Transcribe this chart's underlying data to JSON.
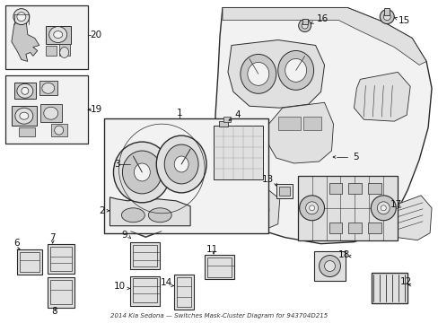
{
  "bg": "#ffffff",
  "lc": "#2a2a2a",
  "fc_light": "#f2f2f2",
  "fc_mid": "#e0e0e0",
  "fc_dark": "#c8c8c8",
  "title": "2014 Kia Sedona — Switches Mask-Cluster Diagram for 943704D215",
  "fig_w": 4.89,
  "fig_h": 3.6,
  "dpi": 100
}
